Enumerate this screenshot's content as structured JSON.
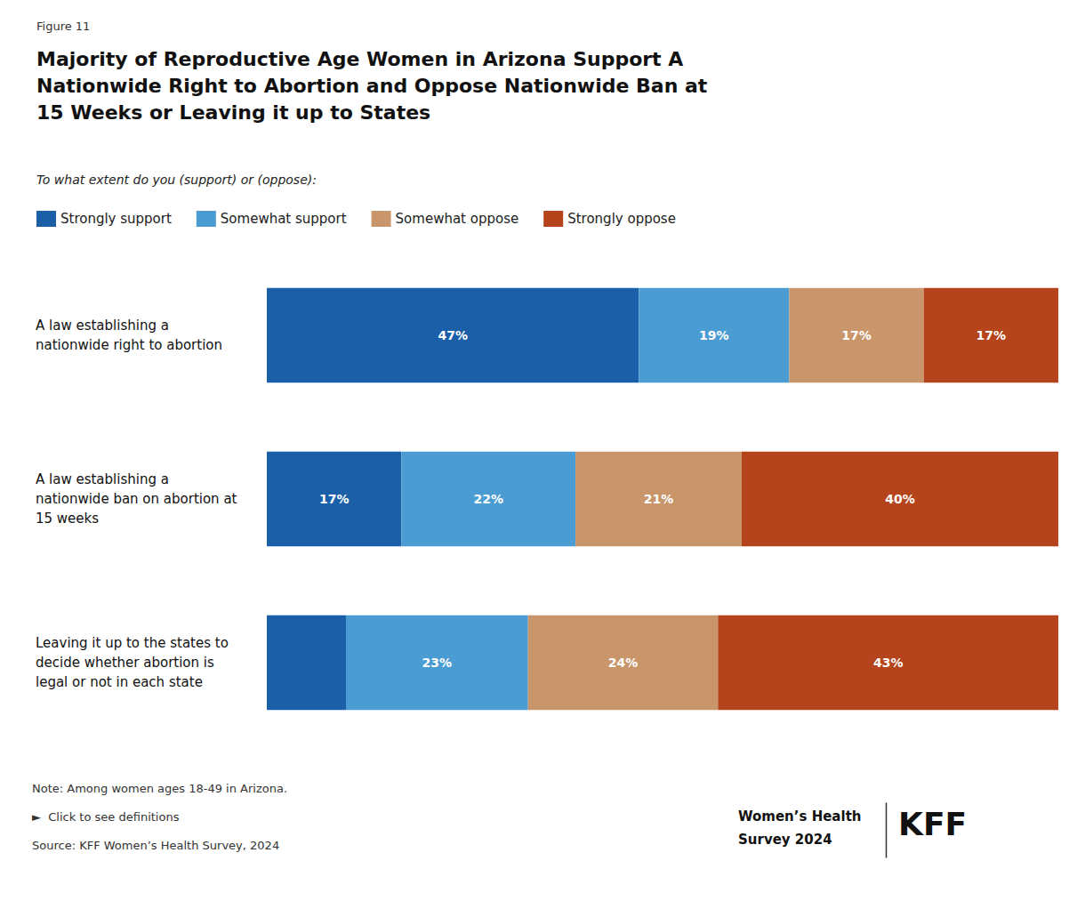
{
  "chart_data": {
    "type": "bar",
    "orientation": "horizontal",
    "stacked": true,
    "data_labels": true,
    "title": "Majority of Reproductive Age Women in Arizona Support A\nNationwide Right to Abortion and Oppose Nationwide Ban at\n15 Weeks or Leaving it up to States",
    "subtitle": "To what extent do you (support) or (oppose):",
    "annotations": [
      "Figure 11",
      "Note: Among women ages 18-49 in Arizona.",
      "►  Click to see definitions",
      "Source: KFF Women’s Health Survey, 2024",
      "Women’s Health",
      "Survey 2024",
      "KFF"
    ],
    "categories": [
      "A law establishing a\nnationwide right to abortion",
      "A law establishing a\nnationwide ban on abortion at\n15 weeks",
      "Leaving it up to the states to\ndecide whether abortion is\nlegal or not in each state"
    ],
    "series": [
      {
        "name": "Strongly support",
        "color": "#1a5fa8",
        "values": [
          47,
          17,
          10
        ],
        "value_labels": [
          "47%",
          "17%",
          null
        ]
      },
      {
        "name": "Somewhat support",
        "color": "#4b9cd3",
        "values": [
          19,
          22,
          23
        ],
        "value_labels": [
          "19%",
          "22%",
          "23%"
        ]
      },
      {
        "name": "Somewhat oppose",
        "color": "#c9956a",
        "values": [
          17,
          21,
          24
        ],
        "value_labels": [
          "17%",
          "21%",
          "24%"
        ]
      },
      {
        "name": "Strongly oppose",
        "color": "#b5431b",
        "values": [
          17,
          40,
          43
        ],
        "value_labels": [
          "17%",
          "40%",
          "43%"
        ]
      }
    ],
    "xlim": [
      0,
      100
    ],
    "tick_labels": "y",
    "grid": false,
    "legend": "top"
  }
}
